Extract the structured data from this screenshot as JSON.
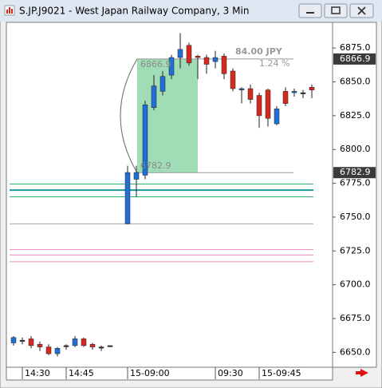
{
  "window": {
    "title": "S.JP.J9021 - West Japan Railway Company, 3 Min"
  },
  "chart_data": {
    "type": "candlestick",
    "categories": [
      null,
      "14:30",
      null,
      null,
      null,
      null,
      "14:45",
      null,
      null,
      null,
      null,
      null,
      null,
      "15-09:00",
      null,
      null,
      null,
      null,
      null,
      null,
      null,
      null,
      null,
      "09:30",
      null,
      null,
      null,
      null,
      "15-09:45",
      null,
      null,
      null,
      null,
      null,
      null
    ],
    "open": [
      6657,
      6659,
      6660,
      6656,
      6654,
      6649,
      6655,
      6655,
      6660,
      6656,
      6654,
      6655,
      null,
      6745,
      6778,
      6781,
      6831,
      6843,
      6855,
      6868,
      6877,
      6869,
      6868,
      6865,
      6869,
      6858,
      6844,
      6845,
      6840,
      6844,
      6819,
      6843,
      6842,
      6842,
      6846
    ],
    "high": [
      6662,
      6661,
      6662,
      6658,
      6656,
      6654,
      6656,
      6662,
      6661,
      6657,
      6655,
      6655,
      null,
      6788,
      6788,
      6836,
      6855,
      6858,
      6870,
      6886,
      6879,
      6870,
      6870,
      6873,
      6871,
      6860,
      6846,
      6848,
      6842,
      6845,
      6832,
      6846,
      6845,
      6844,
      6848
    ],
    "low": [
      6655,
      6656,
      6653,
      6651,
      6648,
      6647,
      6652,
      6654,
      6654,
      6652,
      6651,
      6654,
      null,
      6745,
      6765,
      6778,
      6829,
      6840,
      6852,
      6860,
      6862,
      6852,
      6856,
      6860,
      6852,
      6843,
      6834,
      6834,
      6816,
      6817,
      6818,
      6832,
      6839,
      6838,
      6838
    ],
    "close": [
      6661,
      6659,
      6655,
      6654,
      6649,
      6653,
      6655,
      6660,
      6655,
      6654,
      6654,
      6655,
      null,
      6783,
      6783,
      6833,
      6847,
      6854,
      6868,
      6874,
      6864,
      6868,
      6863,
      6868,
      6856,
      6845,
      6845,
      6837,
      6825,
      6823,
      6830,
      6834,
      6843,
      6842,
      6844
    ],
    "up_color": "#1f6fd6",
    "down_color": "#d42a1e",
    "flat_color": "#333333",
    "ylim": [
      6639,
      6894
    ],
    "yticks": [
      {
        "value": 6650,
        "label": "6650.0"
      },
      {
        "value": 6675,
        "label": "6675.0"
      },
      {
        "value": 6700,
        "label": "6700.0"
      },
      {
        "value": 6725,
        "label": "6725.0"
      },
      {
        "value": 6750,
        "label": "6750.0"
      },
      {
        "value": 6775,
        "label": "6775.0"
      },
      {
        "value": 6800,
        "label": "6800.0"
      },
      {
        "value": 6825,
        "label": "6825.0"
      },
      {
        "value": 6850,
        "label": "6850.0"
      },
      {
        "value": 6875,
        "label": "6875.0"
      }
    ],
    "levels": [
      {
        "value": 6774.5,
        "color": "#2fb36a"
      },
      {
        "value": 6770,
        "color": "#1a9a9a"
      },
      {
        "value": 6765,
        "color": "#2fb36a"
      },
      {
        "value": 6745,
        "color": "#a0a0a0"
      },
      {
        "value": 6726,
        "color": "#e58ab8"
      },
      {
        "value": 6722,
        "color": "#e58ab8"
      },
      {
        "value": 6717,
        "color": "#e58ab8"
      }
    ],
    "measure": {
      "start": 6782.9,
      "end": 6866.9,
      "change_label": "84.00 JPY",
      "percent_label": "1.24 %"
    },
    "price_tags": [
      6866.9,
      6782.9
    ]
  }
}
